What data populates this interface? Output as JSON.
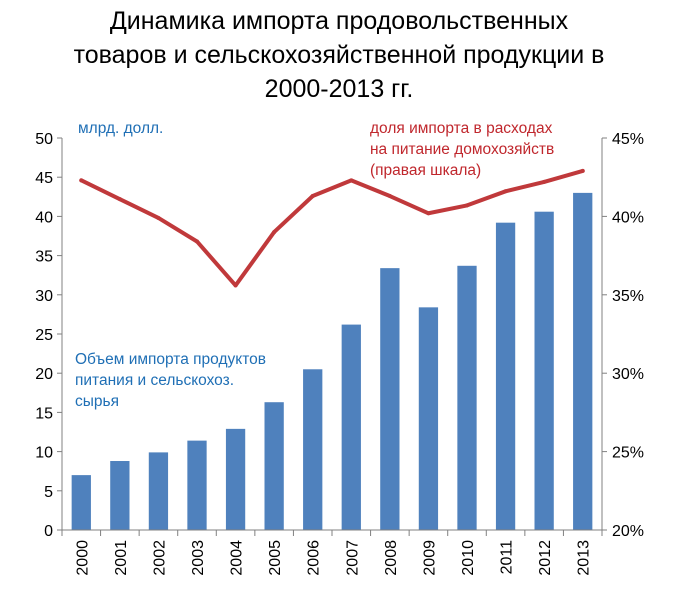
{
  "title": {
    "line1": "Динамика импорта продовольственных",
    "line2": "товаров и сельскохозяйственной продукции в",
    "line3": "2000-2013 гг."
  },
  "chart_data": {
    "type": "bar",
    "title": "Динамика импорта продовольственных товаров и сельскохозяйственной продукции в 2000-2013 гг.",
    "categories": [
      "2000",
      "2001",
      "2002",
      "2003",
      "2004",
      "2005",
      "2006",
      "2007",
      "2008",
      "2009",
      "2010",
      "2011",
      "2012",
      "2013"
    ],
    "left_axis_unit": "млрд. долл.",
    "left_axis": {
      "ylim": [
        0,
        50
      ],
      "ticks": [
        "0",
        "5",
        "10",
        "15",
        "20",
        "25",
        "30",
        "35",
        "40",
        "45",
        "50"
      ]
    },
    "right_axis": {
      "ylim": [
        20,
        45
      ],
      "ticks": [
        "20%",
        "25%",
        "30%",
        "35%",
        "40%",
        "45%"
      ]
    },
    "series": [
      {
        "name": "Объем импорта продуктов питания и сельскохоз. сырья",
        "name_lines": [
          "Объем импорта продуктов",
          "питания и сельскохоз.",
          "сырья"
        ],
        "type": "bar",
        "axis": "left",
        "color": "#4f81bd",
        "values": [
          7.0,
          8.8,
          9.9,
          11.4,
          12.9,
          16.3,
          20.5,
          26.2,
          33.4,
          28.4,
          33.7,
          39.2,
          40.6,
          43.0
        ]
      },
      {
        "name": "доля импорта в расходах на питание домохозяйств (правая шкала)",
        "name_lines": [
          "доля импорта в расходах",
          "на питание домохозяйств",
          "(правая шкала)"
        ],
        "type": "line",
        "axis": "right",
        "unit": "%",
        "color": "#c0393b",
        "values": [
          42.3,
          41.1,
          39.9,
          38.4,
          35.6,
          39.0,
          41.3,
          42.3,
          41.3,
          40.2,
          40.7,
          41.6,
          42.2,
          42.9
        ]
      }
    ],
    "grid": false
  }
}
